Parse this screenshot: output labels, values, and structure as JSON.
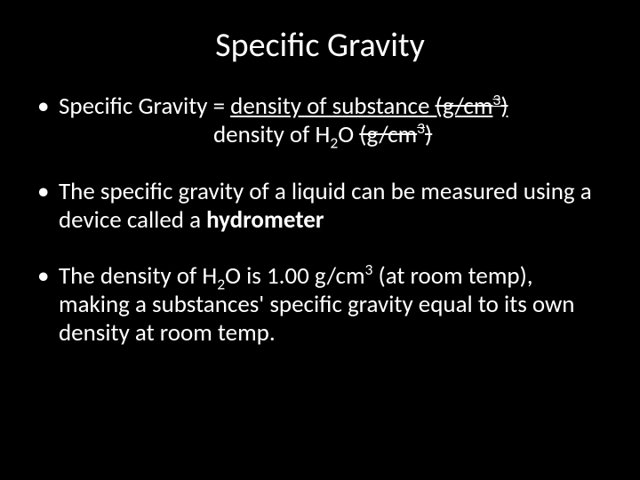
{
  "colors": {
    "background": "#000000",
    "text": "#ffffff"
  },
  "typography": {
    "title_fontsize": 38,
    "body_fontsize": 27,
    "font_family": "Calibri"
  },
  "title": "Specific Gravity",
  "bullets": [
    {
      "line1_prefix": "Specific Gravity = ",
      "line1_under": "density of substance ",
      "line1_unit": "(g/cm",
      "line1_sup": "3",
      "line1_close": ")",
      "line2_text": "density of H",
      "line2_sub": "2",
      "line2_text2": "O ",
      "line2_unit": "(g/cm",
      "line2_sup": "3",
      "line2_close": ")"
    },
    {
      "text_a": "The specific gravity of a liquid can be measured using a device called a ",
      "bold": "hydrometer"
    },
    {
      "text_a": "The density of H",
      "sub": "2",
      "text_b": "O is 1.00 g/cm",
      "sup": "3",
      "text_c": " (at room temp), making a substances' specific gravity equal to its own density at room temp."
    }
  ]
}
